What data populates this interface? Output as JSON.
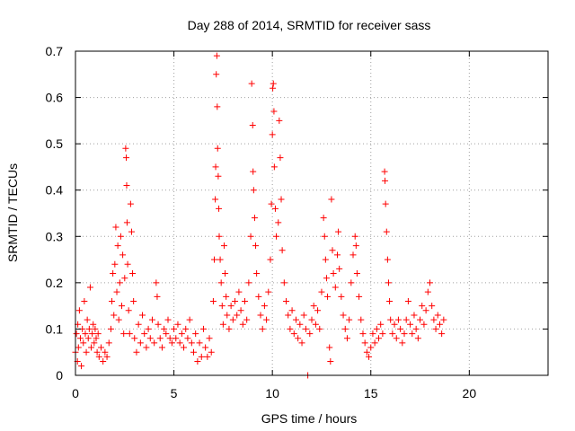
{
  "chart_data": {
    "type": "scatter",
    "title": "Day 288 of 2014, SRMTID for receiver sass",
    "xlabel": "GPS time / hours",
    "ylabel": "SRMTID / TECUs",
    "xlim": [
      0,
      24
    ],
    "ylim": [
      0,
      0.7
    ],
    "xticks": [
      0,
      5,
      10,
      15,
      20
    ],
    "xtick_labels": [
      "0",
      "5",
      "10",
      "15",
      "20"
    ],
    "yticks": [
      0,
      0.1,
      0.2,
      0.3,
      0.4,
      0.5,
      0.6,
      0.7
    ],
    "ytick_labels": [
      "0",
      "0.1",
      "0.2",
      "0.3",
      "0.4",
      "0.5",
      "0.6",
      "0.7"
    ],
    "grid": true,
    "marker": "+",
    "color": "#ff0000",
    "series": [
      {
        "name": "SRMTID",
        "points": [
          [
            0.0,
            0.05
          ],
          [
            0.05,
            0.09
          ],
          [
            0.1,
            0.03
          ],
          [
            0.12,
            0.11
          ],
          [
            0.15,
            0.06
          ],
          [
            0.2,
            0.14
          ],
          [
            0.25,
            0.08
          ],
          [
            0.3,
            0.02
          ],
          [
            0.35,
            0.1
          ],
          [
            0.4,
            0.07
          ],
          [
            0.45,
            0.16
          ],
          [
            0.5,
            0.09
          ],
          [
            0.55,
            0.05
          ],
          [
            0.6,
            0.12
          ],
          [
            0.65,
            0.08
          ],
          [
            0.7,
            0.1
          ],
          [
            0.75,
            0.19
          ],
          [
            0.8,
            0.06
          ],
          [
            0.85,
            0.09
          ],
          [
            0.9,
            0.11
          ],
          [
            0.95,
            0.07
          ],
          [
            1.0,
            0.1
          ],
          [
            1.05,
            0.08
          ],
          [
            1.1,
            0.05
          ],
          [
            1.15,
            0.09
          ],
          [
            1.2,
            0.04
          ],
          [
            1.3,
            0.06
          ],
          [
            1.4,
            0.03
          ],
          [
            1.5,
            0.05
          ],
          [
            1.6,
            0.04
          ],
          [
            1.7,
            0.07
          ],
          [
            1.8,
            0.1
          ],
          [
            1.85,
            0.16
          ],
          [
            1.9,
            0.22
          ],
          [
            1.95,
            0.13
          ],
          [
            2.0,
            0.24
          ],
          [
            2.05,
            0.32
          ],
          [
            2.1,
            0.18
          ],
          [
            2.15,
            0.28
          ],
          [
            2.2,
            0.12
          ],
          [
            2.25,
            0.2
          ],
          [
            2.3,
            0.3
          ],
          [
            2.35,
            0.15
          ],
          [
            2.4,
            0.26
          ],
          [
            2.45,
            0.09
          ],
          [
            2.5,
            0.21
          ],
          [
            2.55,
            0.49
          ],
          [
            2.58,
            0.47
          ],
          [
            2.6,
            0.41
          ],
          [
            2.62,
            0.33
          ],
          [
            2.65,
            0.24
          ],
          [
            2.7,
            0.14
          ],
          [
            2.75,
            0.09
          ],
          [
            2.8,
            0.37
          ],
          [
            2.85,
            0.31
          ],
          [
            2.9,
            0.22
          ],
          [
            2.95,
            0.16
          ],
          [
            3.0,
            0.08
          ],
          [
            3.1,
            0.05
          ],
          [
            3.2,
            0.11
          ],
          [
            3.3,
            0.07
          ],
          [
            3.4,
            0.13
          ],
          [
            3.5,
            0.09
          ],
          [
            3.6,
            0.06
          ],
          [
            3.7,
            0.1
          ],
          [
            3.8,
            0.08
          ],
          [
            3.9,
            0.12
          ],
          [
            4.0,
            0.07
          ],
          [
            4.1,
            0.2
          ],
          [
            4.15,
            0.17
          ],
          [
            4.2,
            0.11
          ],
          [
            4.3,
            0.08
          ],
          [
            4.4,
            0.06
          ],
          [
            4.5,
            0.1
          ],
          [
            4.6,
            0.09
          ],
          [
            4.7,
            0.12
          ],
          [
            4.8,
            0.08
          ],
          [
            4.9,
            0.07
          ],
          [
            5.0,
            0.1
          ],
          [
            5.1,
            0.08
          ],
          [
            5.2,
            0.11
          ],
          [
            5.3,
            0.07
          ],
          [
            5.4,
            0.09
          ],
          [
            5.5,
            0.06
          ],
          [
            5.6,
            0.1
          ],
          [
            5.7,
            0.08
          ],
          [
            5.8,
            0.12
          ],
          [
            5.9,
            0.07
          ],
          [
            6.0,
            0.05
          ],
          [
            6.1,
            0.09
          ],
          [
            6.2,
            0.03
          ],
          [
            6.3,
            0.07
          ],
          [
            6.4,
            0.04
          ],
          [
            6.5,
            0.1
          ],
          [
            6.6,
            0.06
          ],
          [
            6.7,
            0.04
          ],
          [
            6.8,
            0.08
          ],
          [
            6.9,
            0.05
          ],
          [
            7.0,
            0.16
          ],
          [
            7.05,
            0.25
          ],
          [
            7.1,
            0.38
          ],
          [
            7.12,
            0.45
          ],
          [
            7.15,
            0.65
          ],
          [
            7.18,
            0.69
          ],
          [
            7.2,
            0.58
          ],
          [
            7.22,
            0.49
          ],
          [
            7.25,
            0.43
          ],
          [
            7.28,
            0.36
          ],
          [
            7.3,
            0.3
          ],
          [
            7.35,
            0.25
          ],
          [
            7.4,
            0.2
          ],
          [
            7.45,
            0.15
          ],
          [
            7.5,
            0.11
          ],
          [
            7.55,
            0.28
          ],
          [
            7.6,
            0.22
          ],
          [
            7.65,
            0.17
          ],
          [
            7.7,
            0.13
          ],
          [
            7.8,
            0.1
          ],
          [
            7.9,
            0.15
          ],
          [
            8.0,
            0.12
          ],
          [
            8.1,
            0.16
          ],
          [
            8.2,
            0.13
          ],
          [
            8.3,
            0.18
          ],
          [
            8.4,
            0.14
          ],
          [
            8.5,
            0.11
          ],
          [
            8.6,
            0.16
          ],
          [
            8.7,
            0.12
          ],
          [
            8.8,
            0.2
          ],
          [
            8.9,
            0.3
          ],
          [
            8.95,
            0.63
          ],
          [
            9.0,
            0.54
          ],
          [
            9.02,
            0.44
          ],
          [
            9.05,
            0.4
          ],
          [
            9.1,
            0.34
          ],
          [
            9.15,
            0.28
          ],
          [
            9.2,
            0.22
          ],
          [
            9.3,
            0.17
          ],
          [
            9.4,
            0.13
          ],
          [
            9.5,
            0.1
          ],
          [
            9.6,
            0.15
          ],
          [
            9.7,
            0.12
          ],
          [
            9.8,
            0.18
          ],
          [
            9.9,
            0.25
          ],
          [
            9.95,
            0.37
          ],
          [
            10.0,
            0.52
          ],
          [
            10.02,
            0.62
          ],
          [
            10.05,
            0.63
          ],
          [
            10.08,
            0.57
          ],
          [
            10.1,
            0.45
          ],
          [
            10.15,
            0.36
          ],
          [
            10.2,
            0.3
          ],
          [
            10.3,
            0.33
          ],
          [
            10.35,
            0.55
          ],
          [
            10.4,
            0.47
          ],
          [
            10.45,
            0.38
          ],
          [
            10.5,
            0.27
          ],
          [
            10.6,
            0.2
          ],
          [
            10.7,
            0.16
          ],
          [
            10.8,
            0.13
          ],
          [
            10.9,
            0.1
          ],
          [
            11.0,
            0.14
          ],
          [
            11.1,
            0.09
          ],
          [
            11.2,
            0.12
          ],
          [
            11.3,
            0.08
          ],
          [
            11.4,
            0.11
          ],
          [
            11.5,
            0.07
          ],
          [
            11.6,
            0.13
          ],
          [
            11.7,
            0.1
          ],
          [
            11.8,
            0.0
          ],
          [
            11.9,
            0.09
          ],
          [
            12.0,
            0.12
          ],
          [
            12.1,
            0.15
          ],
          [
            12.2,
            0.11
          ],
          [
            12.3,
            0.14
          ],
          [
            12.4,
            0.1
          ],
          [
            12.5,
            0.18
          ],
          [
            12.6,
            0.34
          ],
          [
            12.65,
            0.3
          ],
          [
            12.7,
            0.25
          ],
          [
            12.75,
            0.21
          ],
          [
            12.8,
            0.17
          ],
          [
            12.9,
            0.06
          ],
          [
            12.95,
            0.03
          ],
          [
            13.0,
            0.38
          ],
          [
            13.05,
            0.27
          ],
          [
            13.1,
            0.22
          ],
          [
            13.2,
            0.19
          ],
          [
            13.3,
            0.26
          ],
          [
            13.35,
            0.31
          ],
          [
            13.4,
            0.23
          ],
          [
            13.5,
            0.17
          ],
          [
            13.6,
            0.13
          ],
          [
            13.7,
            0.1
          ],
          [
            13.8,
            0.08
          ],
          [
            13.9,
            0.12
          ],
          [
            14.0,
            0.2
          ],
          [
            14.1,
            0.26
          ],
          [
            14.2,
            0.3
          ],
          [
            14.25,
            0.28
          ],
          [
            14.3,
            0.22
          ],
          [
            14.4,
            0.17
          ],
          [
            14.5,
            0.12
          ],
          [
            14.6,
            0.09
          ],
          [
            14.7,
            0.07
          ],
          [
            14.8,
            0.05
          ],
          [
            14.9,
            0.04
          ],
          [
            15.0,
            0.06
          ],
          [
            15.1,
            0.09
          ],
          [
            15.2,
            0.07
          ],
          [
            15.3,
            0.1
          ],
          [
            15.4,
            0.08
          ],
          [
            15.5,
            0.11
          ],
          [
            15.6,
            0.09
          ],
          [
            15.7,
            0.44
          ],
          [
            15.72,
            0.42
          ],
          [
            15.75,
            0.37
          ],
          [
            15.8,
            0.31
          ],
          [
            15.85,
            0.25
          ],
          [
            15.9,
            0.2
          ],
          [
            15.95,
            0.16
          ],
          [
            16.0,
            0.12
          ],
          [
            16.1,
            0.09
          ],
          [
            16.2,
            0.11
          ],
          [
            16.3,
            0.08
          ],
          [
            16.4,
            0.12
          ],
          [
            16.5,
            0.1
          ],
          [
            16.6,
            0.07
          ],
          [
            16.7,
            0.09
          ],
          [
            16.8,
            0.12
          ],
          [
            16.9,
            0.16
          ],
          [
            17.0,
            0.11
          ],
          [
            17.1,
            0.09
          ],
          [
            17.2,
            0.13
          ],
          [
            17.3,
            0.1
          ],
          [
            17.4,
            0.08
          ],
          [
            17.5,
            0.12
          ],
          [
            17.6,
            0.15
          ],
          [
            17.7,
            0.11
          ],
          [
            17.8,
            0.14
          ],
          [
            17.9,
            0.18
          ],
          [
            18.0,
            0.2
          ],
          [
            18.1,
            0.15
          ],
          [
            18.2,
            0.12
          ],
          [
            18.3,
            0.1
          ],
          [
            18.4,
            0.13
          ],
          [
            18.5,
            0.11
          ],
          [
            18.6,
            0.09
          ],
          [
            18.7,
            0.12
          ]
        ]
      }
    ]
  }
}
